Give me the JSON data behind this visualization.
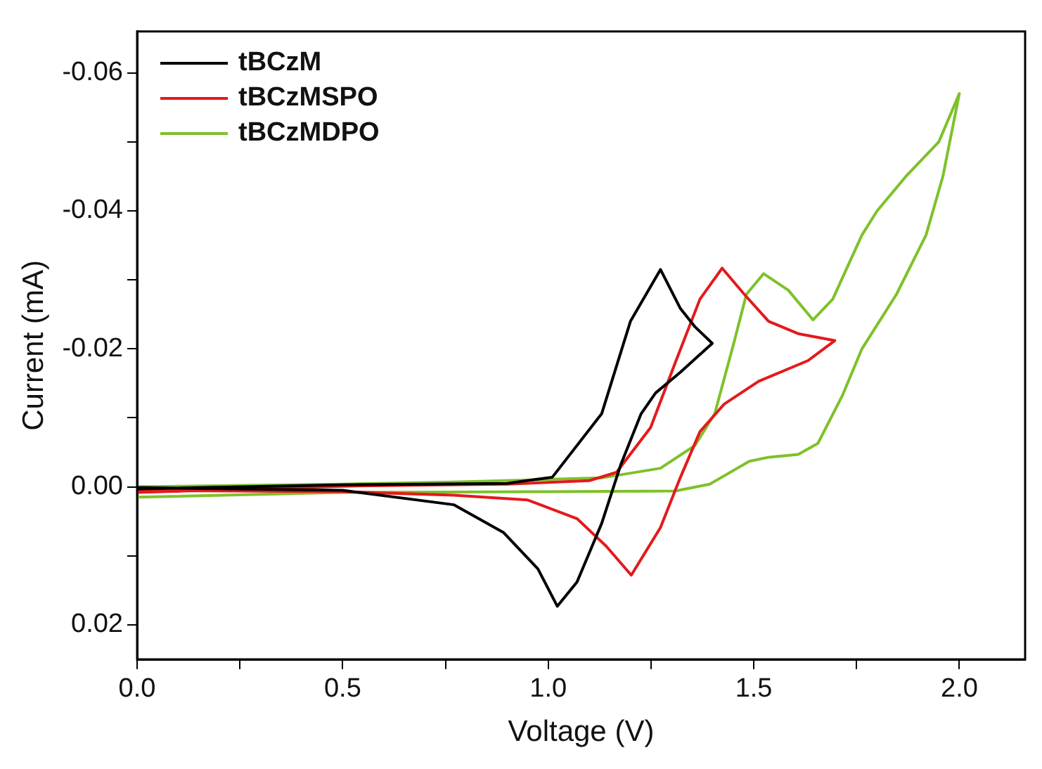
{
  "chart_data": {
    "type": "line",
    "xlabel": "Voltage (V)",
    "ylabel": "Current (mA)",
    "xlim": [
      0,
      2.16
    ],
    "ylim": [
      0.025,
      -0.066
    ],
    "xticks": [
      {
        "value": 0,
        "label": "0.0"
      },
      {
        "value": 0.25,
        "label": null
      },
      0.5,
      {
        "value": 0.75,
        "label": null
      },
      {
        "value": 1,
        "label": "1.0"
      },
      {
        "value": 1.25,
        "label": null
      },
      1.5,
      {
        "value": 1.75,
        "label": null
      },
      {
        "value": 2,
        "label": "2.0"
      }
    ],
    "yticks": [
      -0.06,
      {
        "value": -0.05,
        "label": null
      },
      -0.04,
      {
        "value": -0.03,
        "label": null
      },
      -0.02,
      {
        "value": -0.01,
        "label": null
      },
      {
        "value": 0,
        "label": "0.00"
      },
      {
        "value": 0.01,
        "label": null
      },
      0.02
    ],
    "grid": false,
    "legend": "top left",
    "marker": "none",
    "line_style": "solid",
    "series": [
      {
        "name": "tBCzM",
        "color": "#000000",
        "x": [
          0,
          0.5,
          0.9,
          1.01,
          1.13,
          1.2,
          1.273,
          1.321,
          1.357,
          1.399,
          1.321,
          1.261,
          1.226,
          1.177,
          1.13,
          1.07,
          1.022,
          0.975,
          0.891,
          0.771,
          0.5,
          0
        ],
        "values": [
          0.0003,
          -0.0003,
          -0.0005,
          -0.0014,
          -0.0106,
          -0.024,
          -0.0315,
          -0.0259,
          -0.0232,
          -0.0208,
          -0.0166,
          -0.0136,
          -0.0106,
          -0.0033,
          0.0053,
          0.0138,
          0.0173,
          0.0119,
          0.0066,
          0.0026,
          0.0005,
          0.0001
        ]
      },
      {
        "name": "tBCzMSPO",
        "color": "#e31a1c",
        "x": [
          0,
          0.5,
          0.9,
          1.1,
          1.166,
          1.249,
          1.309,
          1.369,
          1.423,
          1.477,
          1.536,
          1.608,
          1.697,
          1.632,
          1.512,
          1.428,
          1.369,
          1.321,
          1.273,
          1.202,
          1.141,
          1.07,
          0.95,
          0.771,
          0.5,
          0
        ],
        "values": [
          0.0008,
          -0.0001,
          -0.0004,
          -0.0009,
          -0.0021,
          -0.0086,
          -0.018,
          -0.0272,
          -0.0317,
          -0.0279,
          -0.024,
          -0.0222,
          -0.0212,
          -0.0183,
          -0.0153,
          -0.012,
          -0.008,
          -0.0013,
          0.0059,
          0.0128,
          0.0086,
          0.0046,
          0.0019,
          0.0012,
          0.0007,
          0.0005
        ]
      },
      {
        "name": "tBCzMDPO",
        "color": "#7ec12a",
        "x": [
          0,
          0.5,
          1,
          1.309,
          1.393,
          1.489,
          1.537,
          1.608,
          1.656,
          1.716,
          1.763,
          1.847,
          1.919,
          1.96,
          2,
          1.95,
          1.87,
          1.8,
          1.763,
          1.692,
          1.644,
          1.584,
          1.524,
          1.482,
          1.453,
          1.405,
          1.357,
          1.273,
          1.13,
          0.771,
          0.5,
          0
        ],
        "values": [
          0.0015,
          0.0008,
          0.0007,
          0.0006,
          -0.0004,
          -0.0037,
          -0.0043,
          -0.0047,
          -0.0063,
          -0.0133,
          -0.02,
          -0.0279,
          -0.0365,
          -0.045,
          -0.057,
          -0.05,
          -0.045,
          -0.04,
          -0.0365,
          -0.0272,
          -0.0242,
          -0.0285,
          -0.0309,
          -0.0279,
          -0.0212,
          -0.0106,
          -0.006,
          -0.0027,
          -0.0013,
          -0.0007,
          -0.0004,
          0
        ]
      }
    ]
  }
}
